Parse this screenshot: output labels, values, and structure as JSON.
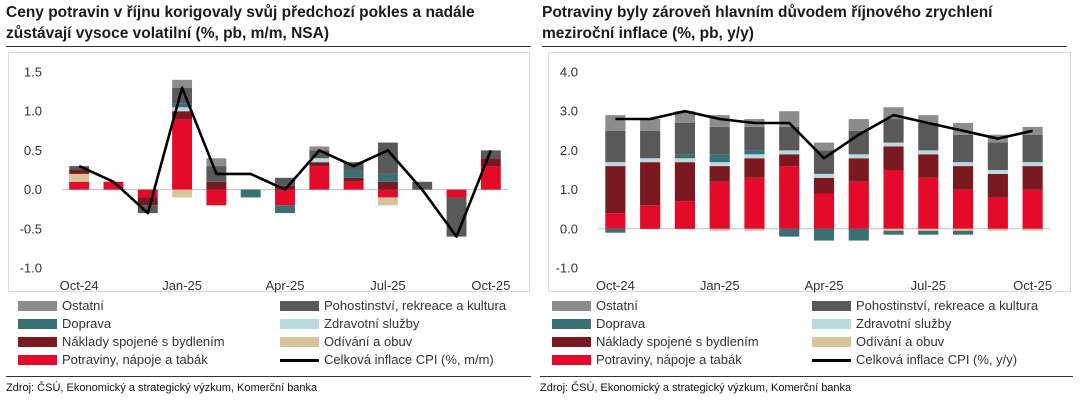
{
  "colors": {
    "ostatni": "#8c8c8c",
    "pohostinstvi": "#595959",
    "doprava": "#3a6f73",
    "zdravotni": "#b7dbe0",
    "bydleni": "#7a1a20",
    "odivani": "#d9c39a",
    "potraviny": "#e30a2a",
    "line": "#000000"
  },
  "charts": [
    {
      "title": "Ceny potravin v říjnu korigovaly svůj předchozí pokles a nadále zůstávají vysoce volatilní (%, pb, m/m, NSA)",
      "source": "Zdroj: ČSÚ, Ekonomický a strategický výzkum, Komerční banka",
      "legend": [
        {
          "key": "ostatni",
          "label": "Ostatní",
          "kind": "bar"
        },
        {
          "key": "pohostinstvi",
          "label": "Pohostinství, rekreace a kultura",
          "kind": "bar"
        },
        {
          "key": "doprava",
          "label": "Doprava",
          "kind": "bar"
        },
        {
          "key": "zdravotni",
          "label": "Zdravotní služby",
          "kind": "bar"
        },
        {
          "key": "bydleni",
          "label": "Náklady spojené s bydlením",
          "kind": "bar"
        },
        {
          "key": "odivani",
          "label": "Odívání a obuv",
          "kind": "bar"
        },
        {
          "key": "potraviny",
          "label": "Potraviny, nápoje a tabák",
          "kind": "bar"
        },
        {
          "key": "line",
          "label": "Celková inflace CPI (%, m/m)",
          "kind": "line"
        }
      ]
    },
    {
      "title": "Potraviny byly zároveň hlavním důvodem říjnového zrychlení meziroční inflace (%, pb, y/y)",
      "source": "Zdroj: ČSÚ, Ekonomický a strategický výzkum, Komerční banka",
      "legend": [
        {
          "key": "ostatni",
          "label": "Ostatní",
          "kind": "bar"
        },
        {
          "key": "pohostinstvi",
          "label": "Pohostinství, rekreace a kultura",
          "kind": "bar"
        },
        {
          "key": "doprava",
          "label": "Doprava",
          "kind": "bar"
        },
        {
          "key": "zdravotni",
          "label": "Zdravotní služby",
          "kind": "bar"
        },
        {
          "key": "bydleni",
          "label": "Náklady spojené s bydlením",
          "kind": "bar"
        },
        {
          "key": "odivani",
          "label": "Odívání a obuv",
          "kind": "bar"
        },
        {
          "key": "potraviny",
          "label": "Potraviny, nápoje a tabák",
          "kind": "bar"
        },
        {
          "key": "line",
          "label": "Celková inflace CPI (%, y/y)",
          "kind": "line"
        }
      ]
    }
  ],
  "chart_data": [
    {
      "type": "bar",
      "stacked": true,
      "title": "Ceny potravin v říjnu korigovaly svůj předchozí pokles a nadále zůstávají vysoce volatilní (%, pb, m/m, NSA)",
      "categories": [
        "Oct-24",
        "Nov-24",
        "Dec-24",
        "Jan-25",
        "Feb-25",
        "Mar-25",
        "Apr-25",
        "May-25",
        "Jun-25",
        "Jul-25",
        "Aug-25",
        "Sep-25",
        "Oct-25"
      ],
      "xticks": [
        "Oct-24",
        "Jan-25",
        "Apr-25",
        "Jul-25",
        "Oct-25"
      ],
      "yticks": [
        -1.0,
        -0.5,
        0.0,
        0.5,
        1.0,
        1.5
      ],
      "ytick_labels": [
        "-1.0",
        "-0.5",
        "0.0",
        "0.5",
        "1.0",
        "1.5"
      ],
      "ylim": [
        -1.0,
        1.5
      ],
      "series": [
        {
          "key": "potraviny",
          "name": "Potraviny, nápoje a tabák",
          "values": [
            0.1,
            0.1,
            -0.1,
            0.9,
            -0.2,
            0.0,
            -0.2,
            0.3,
            0.1,
            -0.1,
            0.0,
            -0.1,
            0.3
          ]
        },
        {
          "key": "odivani",
          "name": "Odívání a obuv",
          "values": [
            0.1,
            0.0,
            0.0,
            -0.1,
            0.0,
            0.0,
            0.0,
            0.0,
            0.0,
            -0.1,
            0.0,
            0.0,
            0.0
          ]
        },
        {
          "key": "bydleni",
          "name": "Náklady spojené s bydlením",
          "values": [
            0.05,
            0.0,
            -0.1,
            0.1,
            0.1,
            0.0,
            0.05,
            0.05,
            0.05,
            0.1,
            0.0,
            0.0,
            0.1
          ]
        },
        {
          "key": "zdravotni",
          "name": "Zdravotní služby",
          "values": [
            0.0,
            0.0,
            0.0,
            0.05,
            0.0,
            0.0,
            0.0,
            0.05,
            0.0,
            0.0,
            0.0,
            0.0,
            0.0
          ]
        },
        {
          "key": "doprava",
          "name": "Doprava",
          "values": [
            0.0,
            0.0,
            0.0,
            0.05,
            0.0,
            -0.1,
            -0.1,
            0.0,
            0.1,
            0.1,
            0.0,
            0.0,
            0.0
          ]
        },
        {
          "key": "pohostinstvi",
          "name": "Pohostinství, rekreace a kultura",
          "values": [
            0.05,
            0.0,
            -0.1,
            0.2,
            0.2,
            0.0,
            0.1,
            0.1,
            0.1,
            0.4,
            0.1,
            -0.5,
            0.1
          ]
        },
        {
          "key": "ostatni",
          "name": "Ostatní",
          "values": [
            0.0,
            0.0,
            0.0,
            0.1,
            0.1,
            0.0,
            0.0,
            0.05,
            0.0,
            0.0,
            0.0,
            0.0,
            0.0
          ]
        }
      ],
      "line": {
        "key": "line",
        "name": "Celková inflace CPI (%, m/m)",
        "values": [
          0.3,
          0.1,
          -0.3,
          1.3,
          0.2,
          0.2,
          0.0,
          0.5,
          0.3,
          0.5,
          0.0,
          -0.6,
          0.5
        ]
      }
    },
    {
      "type": "bar",
      "stacked": true,
      "title": "Potraviny byly zároveň hlavním důvodem říjnového zrychlení meziroční inflace (%, pb, y/y)",
      "categories": [
        "Oct-24",
        "Nov-24",
        "Dec-24",
        "Jan-25",
        "Feb-25",
        "Mar-25",
        "Apr-25",
        "May-25",
        "Jun-25",
        "Jul-25",
        "Aug-25",
        "Sep-25",
        "Oct-25"
      ],
      "xticks": [
        "Oct-24",
        "Jan-25",
        "Apr-25",
        "Jul-25",
        "Oct-25"
      ],
      "yticks": [
        -1.0,
        0.0,
        1.0,
        2.0,
        3.0,
        4.0
      ],
      "ytick_labels": [
        "-1.0",
        "0.0",
        "1.0",
        "2.0",
        "3.0",
        "4.0"
      ],
      "ylim": [
        -1.0,
        4.0
      ],
      "series": [
        {
          "key": "potraviny",
          "name": "Potraviny, nápoje a tabák",
          "values": [
            0.4,
            0.6,
            0.7,
            1.2,
            1.3,
            1.6,
            0.9,
            1.2,
            1.5,
            1.3,
            1.0,
            0.8,
            1.0
          ]
        },
        {
          "key": "odivani",
          "name": "Odívání a obuv",
          "values": [
            0.0,
            0.0,
            0.0,
            -0.05,
            -0.05,
            0.0,
            0.0,
            0.0,
            -0.05,
            -0.05,
            -0.05,
            -0.05,
            -0.05
          ]
        },
        {
          "key": "bydleni",
          "name": "Náklady spojené s bydlením",
          "values": [
            1.2,
            1.1,
            1.0,
            0.4,
            0.5,
            0.3,
            0.4,
            0.6,
            0.6,
            0.6,
            0.6,
            0.6,
            0.6
          ]
        },
        {
          "key": "zdravotni",
          "name": "Zdravotní služby",
          "values": [
            0.1,
            0.1,
            0.1,
            0.1,
            0.1,
            0.1,
            0.1,
            0.1,
            0.1,
            0.1,
            0.1,
            0.1,
            0.1
          ]
        },
        {
          "key": "doprava",
          "name": "Doprava",
          "values": [
            -0.1,
            0.0,
            0.1,
            0.2,
            0.1,
            -0.2,
            -0.3,
            -0.3,
            -0.1,
            -0.1,
            -0.1,
            0.0,
            0.0
          ]
        },
        {
          "key": "pohostinstvi",
          "name": "Pohostinství, rekreace a kultura",
          "values": [
            0.8,
            0.7,
            0.8,
            0.7,
            0.6,
            0.6,
            0.6,
            0.6,
            0.6,
            0.7,
            0.7,
            0.7,
            0.7
          ]
        },
        {
          "key": "ostatni",
          "name": "Ostatní",
          "values": [
            0.4,
            0.3,
            0.3,
            0.3,
            0.2,
            0.4,
            0.2,
            0.3,
            0.3,
            0.2,
            0.3,
            0.2,
            0.2
          ]
        }
      ],
      "line": {
        "key": "line",
        "name": "Celková inflace CPI (%, y/y)",
        "values": [
          2.8,
          2.8,
          3.0,
          2.8,
          2.7,
          2.7,
          1.8,
          2.4,
          2.9,
          2.7,
          2.5,
          2.3,
          2.5
        ]
      }
    }
  ]
}
